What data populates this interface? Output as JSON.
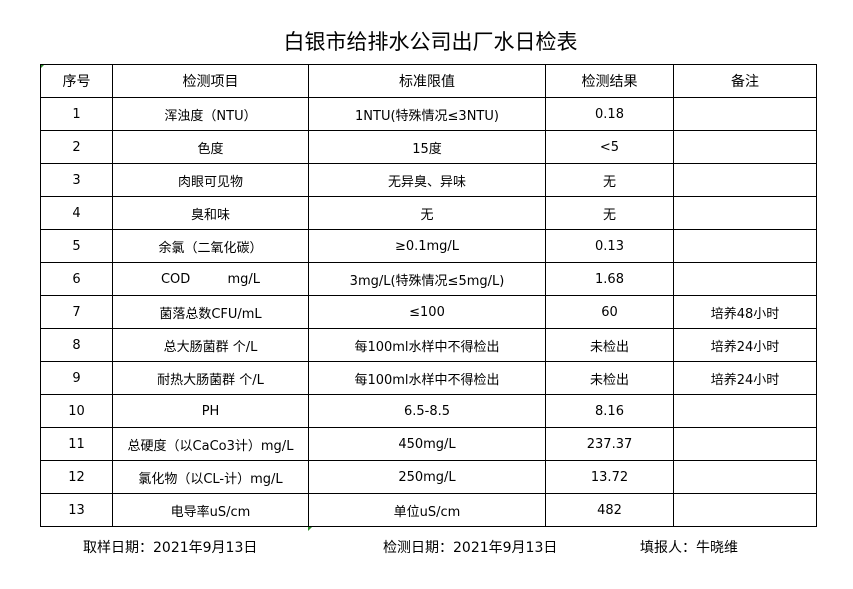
{
  "title": "白银市给排水公司出厂水日检表",
  "headers": [
    "序号",
    "检测项目",
    "标准限值",
    "检测结果",
    "备注"
  ],
  "rows": [
    [
      "1",
      "浑浊度（NTU）",
      "1NTU(特殊情况≤3NTU)",
      "0.18",
      ""
    ],
    [
      "2",
      "色度",
      "15度",
      "<5",
      ""
    ],
    [
      "3",
      "肉眼可见物",
      "无异臭、异味",
      "无",
      ""
    ],
    [
      "4",
      "臭和味",
      "无",
      "无",
      ""
    ],
    [
      "5",
      "余氯（二氧化碳）",
      "≥0.1mg/L",
      "0.13",
      ""
    ],
    [
      "6",
      "COD         mg/L",
      "3mg/L(特殊情况≤5mg/L)",
      "1.68",
      ""
    ],
    [
      "7",
      "菌落总数CFU/mL",
      "≤100",
      "60",
      "培养48小时"
    ],
    [
      "8",
      "总大肠菌群 个/L",
      "每100ml水样中不得检出",
      "未检出",
      "培养24小时"
    ],
    [
      "9",
      "耐热大肠菌群 个/L",
      "每100ml水样中不得检出",
      "未检出",
      "培养24小时"
    ],
    [
      "10",
      "PH",
      "6.5-8.5",
      "8.16",
      ""
    ],
    [
      "11",
      "总硬度（以CaCo3计）mg/L",
      "450mg/L",
      "237.37",
      ""
    ],
    [
      "12",
      "氯化物（以CL-计）mg/L",
      "250mg/L",
      "13.72",
      ""
    ],
    [
      "13",
      "电导率uS/cm",
      "单位uS/cm",
      "482",
      ""
    ]
  ],
  "footer": {
    "sample_date": "取样日期：2021年9月13日",
    "test_date": "检测日期：2021年9月13日",
    "reporter": "填报人：牛晓维"
  }
}
